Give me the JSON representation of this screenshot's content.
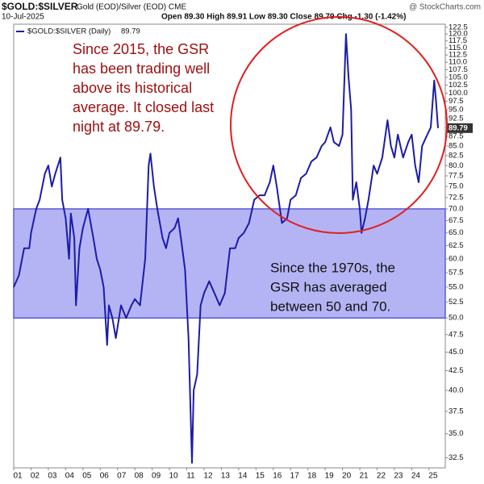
{
  "chart_data": {
    "type": "line",
    "title": "$GOLD:$SILVER",
    "subtitle": "Gold (EOD)/Silver (EOD) CME",
    "source": "@ StockCharts.com",
    "date": "10-Jul-2025",
    "quote": "Open 89.30 High 89.91 Low 89.30 Close 89.79 Chg -1.30 (-1.42%)",
    "log_scale": true,
    "grid": false,
    "xlim": [
      2001,
      2025.94
    ],
    "ylim": [
      31.5,
      123.7
    ],
    "xticks": [
      {
        "value": 2001,
        "label": "01"
      },
      {
        "value": 2002,
        "label": "02"
      },
      {
        "value": 2003,
        "label": "03"
      },
      {
        "value": 2004,
        "label": "04"
      },
      {
        "value": 2005,
        "label": "05"
      },
      {
        "value": 2006,
        "label": "06"
      },
      {
        "value": 2007,
        "label": "07"
      },
      {
        "value": 2008,
        "label": "08"
      },
      {
        "value": 2009,
        "label": "09"
      },
      {
        "value": 2010,
        "label": "10"
      },
      {
        "value": 2011,
        "label": "11"
      },
      {
        "value": 2012,
        "label": "12"
      },
      {
        "value": 2013,
        "label": "13"
      },
      {
        "value": 2014,
        "label": "14"
      },
      {
        "value": 2015,
        "label": "15"
      },
      {
        "value": 2016,
        "label": "16"
      },
      {
        "value": 2017,
        "label": "17"
      },
      {
        "value": 2018,
        "label": "18"
      },
      {
        "value": 2019,
        "label": "19"
      },
      {
        "value": 2020,
        "label": "20"
      },
      {
        "value": 2021,
        "label": "21"
      },
      {
        "value": 2022,
        "label": "22"
      },
      {
        "value": 2023,
        "label": "23"
      },
      {
        "value": 2024,
        "label": "24"
      },
      {
        "value": 2025,
        "label": "25"
      }
    ],
    "yticks": [
      32.5,
      {
        "value": 35,
        "label": "35.0"
      },
      37.5,
      {
        "value": 40,
        "label": "40.0"
      },
      42.5,
      {
        "value": 45,
        "label": "45.0"
      },
      47.5,
      {
        "value": 50,
        "label": "50.0"
      },
      52.5,
      {
        "value": 55,
        "label": "55.0"
      },
      57.5,
      {
        "value": 60,
        "label": "60.0"
      },
      62.5,
      {
        "value": 65,
        "label": "65.0"
      },
      67.5,
      {
        "value": 70,
        "label": "70.0"
      },
      72.5,
      {
        "value": 75,
        "label": "75.0"
      },
      77.5,
      {
        "value": 80,
        "label": "80.0"
      },
      82.5,
      {
        "value": 85,
        "label": "85.0"
      },
      87.5,
      {
        "value": 90,
        "label": "90.0"
      },
      92.5,
      {
        "value": 95,
        "label": "95.0"
      },
      97.5,
      {
        "value": 100,
        "label": "100.0"
      },
      102.5,
      {
        "value": 105,
        "label": "105.0"
      },
      107.5,
      {
        "value": 110,
        "label": "110.0"
      },
      112.5,
      {
        "value": 115,
        "label": "115.0"
      },
      117.5,
      {
        "value": 120,
        "label": "120.0"
      },
      122.5
    ],
    "band": {
      "from": 50,
      "to": 70,
      "color": "#b4b4f4"
    },
    "annotations": [
      {
        "lines": [
          "Since 2015, the GSR",
          "has been trading well",
          "above its historical",
          "average. It closed last",
          "night at 89.79."
        ],
        "color": "#a01010"
      },
      {
        "lines": [
          "Since the 1970s, the",
          "GSR has averaged",
          "between 50 and 70."
        ],
        "color": "#111111"
      }
    ],
    "series": [
      {
        "name": "$GOLD:$SILVER (Daily)",
        "color": "#1c1ca8",
        "x": [
          2001.0,
          2001.3,
          2001.6,
          2001.9,
          2002.0,
          2002.3,
          2002.5,
          2002.8,
          2003.0,
          2003.2,
          2003.4,
          2003.7,
          2003.8,
          2004.0,
          2004.2,
          2004.3,
          2004.5,
          2004.6,
          2004.8,
          2005.0,
          2005.3,
          2005.6,
          2005.8,
          2006.0,
          2006.2,
          2006.4,
          2006.5,
          2006.7,
          2006.9,
          2007.2,
          2007.5,
          2007.8,
          2008.0,
          2008.3,
          2008.6,
          2008.8,
          2008.9,
          2009.1,
          2009.3,
          2009.6,
          2009.8,
          2010.0,
          2010.3,
          2010.5,
          2010.7,
          2010.9,
          2011.1,
          2011.3,
          2011.4,
          2011.6,
          2011.8,
          2012.0,
          2012.3,
          2012.6,
          2012.9,
          2013.2,
          2013.5,
          2013.8,
          2014.0,
          2014.3,
          2014.6,
          2014.9,
          2015.2,
          2015.5,
          2015.8,
          2016.0,
          2016.2,
          2016.5,
          2016.8,
          2017.0,
          2017.3,
          2017.6,
          2017.9,
          2018.2,
          2018.5,
          2018.8,
          2019.0,
          2019.3,
          2019.5,
          2019.8,
          2020.0,
          2020.2,
          2020.35,
          2020.5,
          2020.6,
          2020.8,
          2021.0,
          2021.1,
          2021.3,
          2021.5,
          2021.8,
          2022.0,
          2022.3,
          2022.6,
          2022.8,
          2023.0,
          2023.2,
          2023.5,
          2023.8,
          2024.0,
          2024.2,
          2024.4,
          2024.6,
          2024.9,
          2025.1,
          2025.3,
          2025.4,
          2025.52
        ],
        "values": [
          55,
          57,
          62,
          62,
          65,
          70,
          72,
          78,
          80,
          75,
          78,
          82,
          72,
          68,
          60,
          69,
          64,
          52,
          62,
          66,
          70,
          64,
          60,
          58,
          55,
          46,
          52,
          50,
          47,
          52,
          50,
          52,
          53,
          52,
          60,
          80,
          83,
          75,
          70,
          64,
          62,
          65,
          66,
          68,
          63,
          58,
          47,
          32,
          40,
          42,
          52,
          54,
          56,
          54,
          52,
          54,
          62,
          62,
          64,
          65,
          67,
          72,
          73,
          73,
          76,
          80,
          75,
          67,
          68,
          72,
          73,
          77,
          78,
          81,
          82,
          85,
          86,
          90,
          86,
          85,
          88,
          120,
          105,
          95,
          72,
          76,
          70,
          65,
          68,
          72,
          80,
          78,
          82,
          92,
          85,
          82,
          88,
          82,
          86,
          88,
          80,
          76,
          85,
          88,
          90,
          104,
          98,
          89.79
        ]
      }
    ]
  }
}
